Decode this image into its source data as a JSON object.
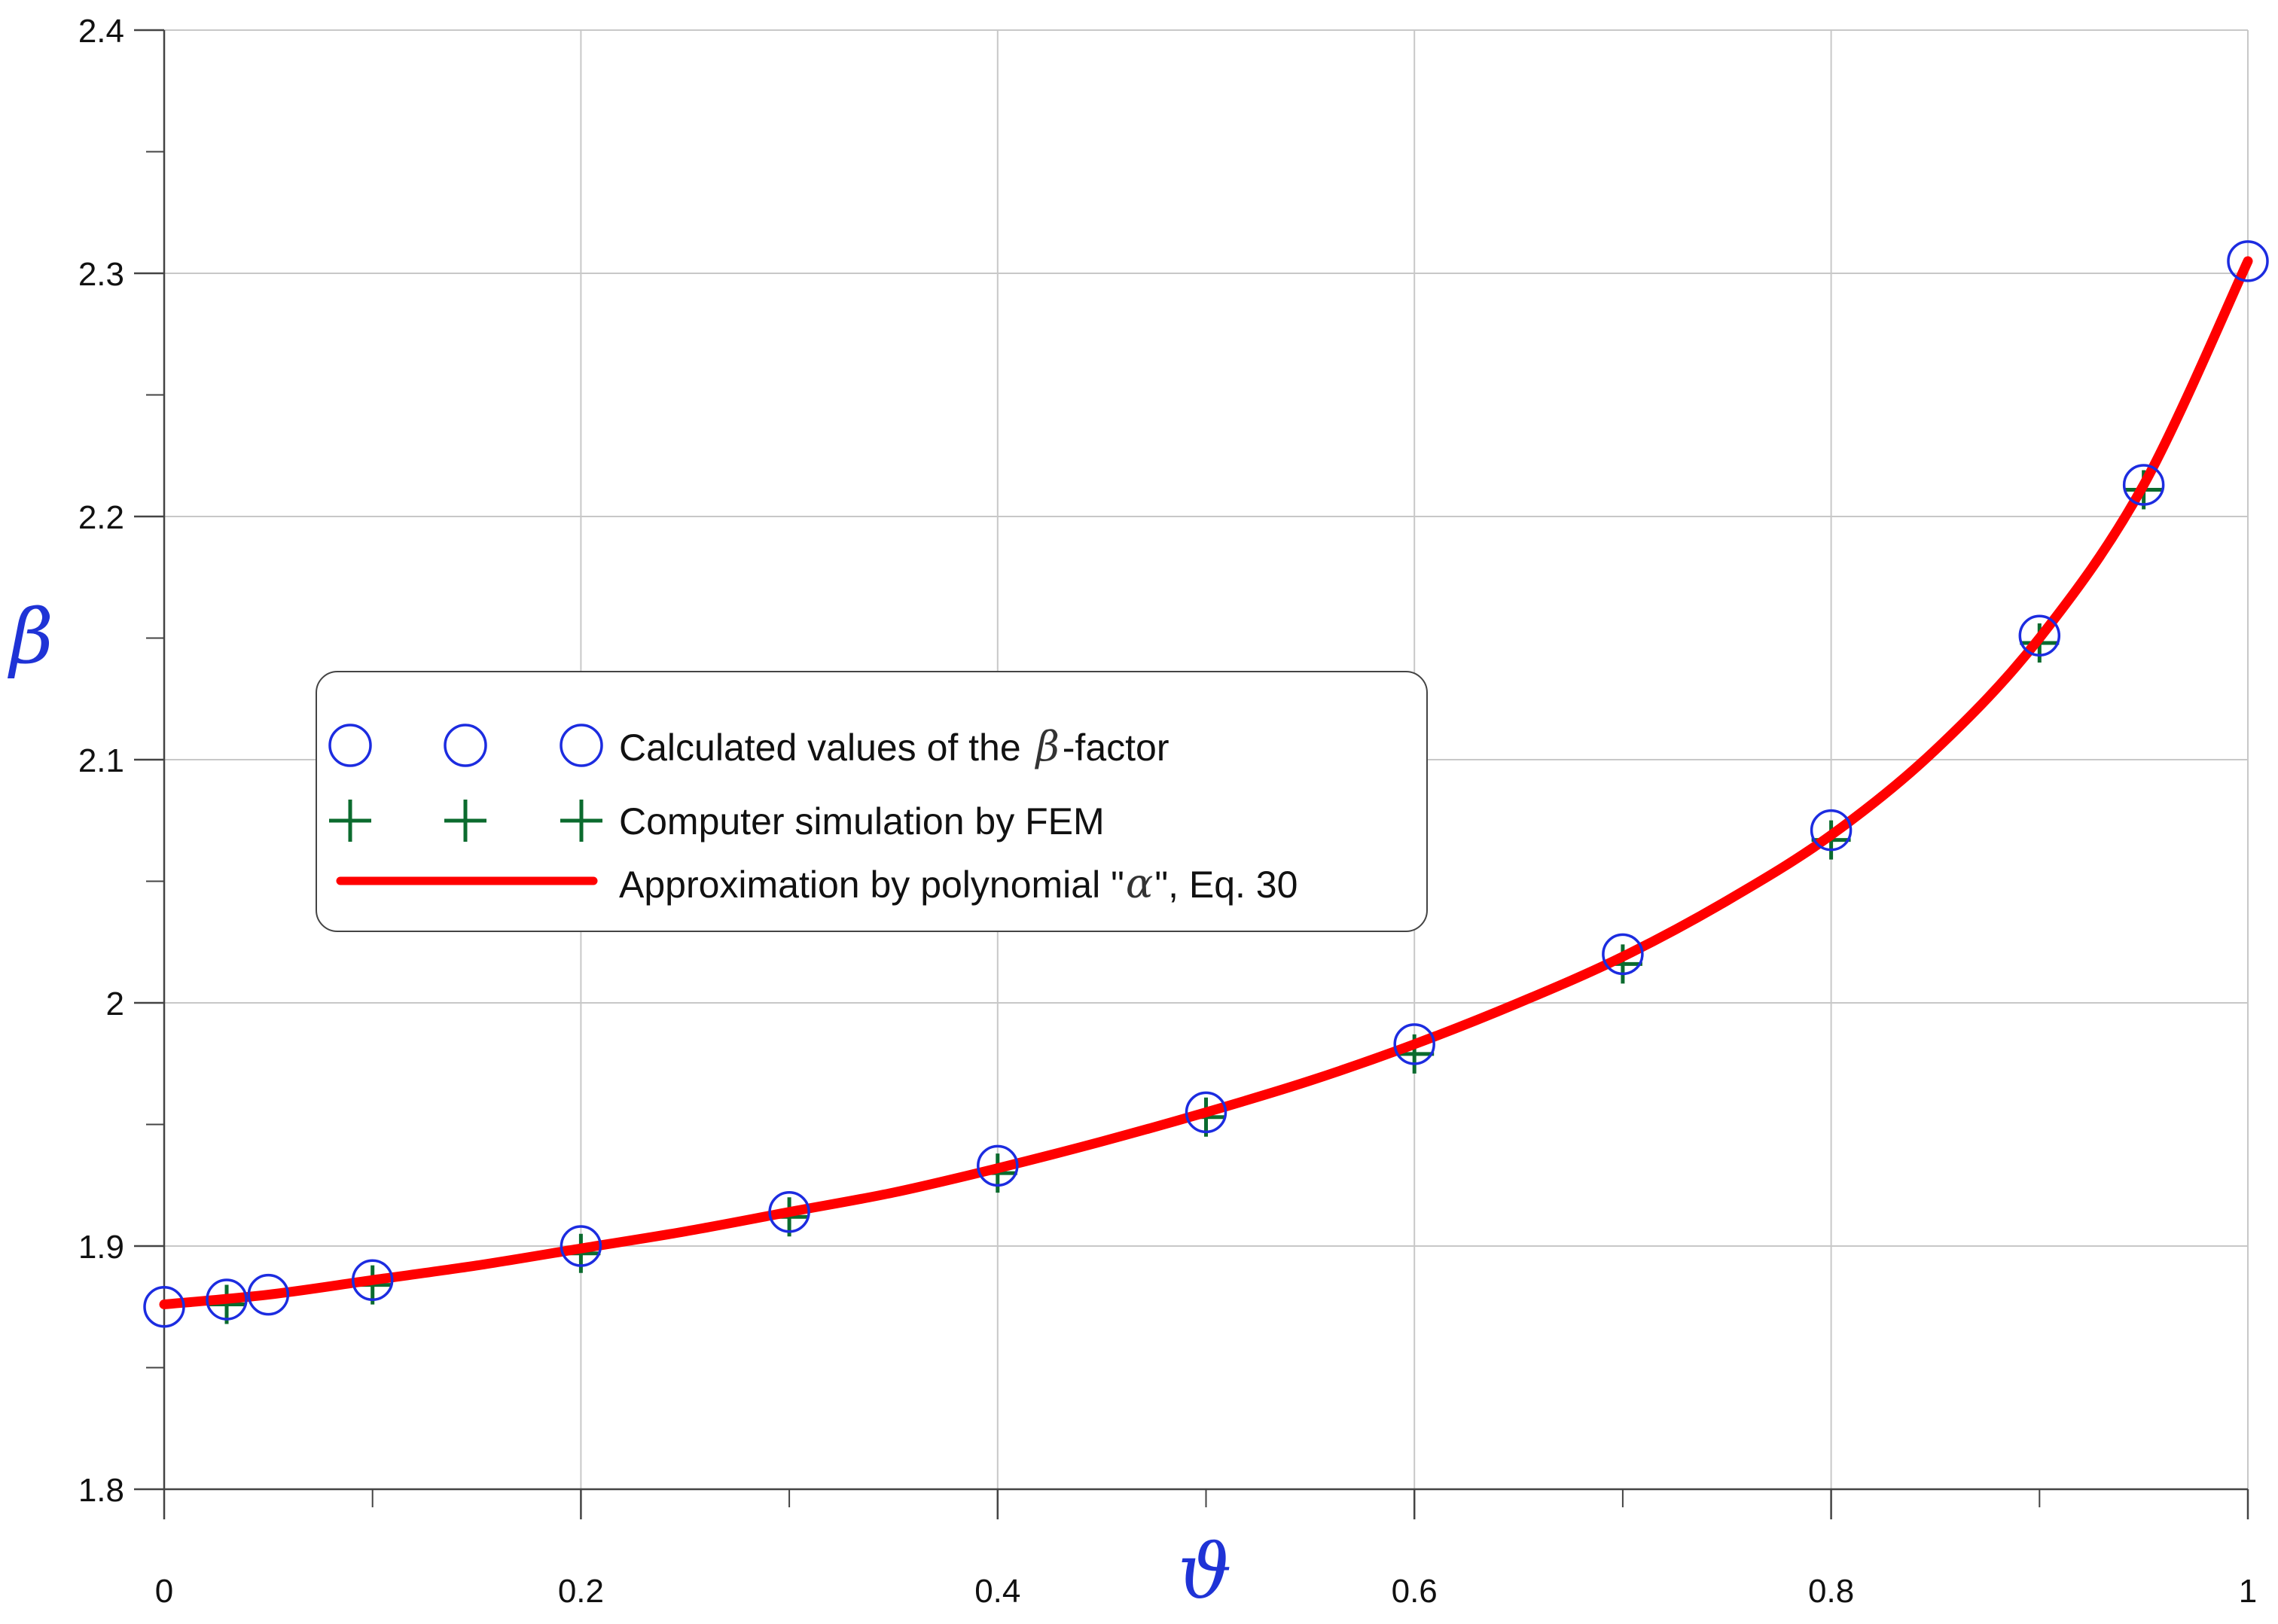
{
  "chart_data": {
    "type": "scatter",
    "xlabel": "ϑ",
    "ylabel": "β",
    "xlim": [
      0,
      1
    ],
    "ylim": [
      1.8,
      2.4
    ],
    "x_ticks": [
      0,
      0.2,
      0.4,
      0.6,
      0.8,
      1
    ],
    "x_tick_labels": [
      "0",
      "0.2",
      "0.4",
      "0.6",
      "0.8",
      "1"
    ],
    "x_minor_ticks": [
      0.1,
      0.3,
      0.5,
      0.7,
      0.9
    ],
    "y_ticks": [
      1.8,
      1.9,
      2.0,
      2.1,
      2.2,
      2.3,
      2.4
    ],
    "y_tick_labels": [
      "1.8",
      "1.9",
      "2",
      "2.1",
      "2.2",
      "2.3",
      "2.4"
    ],
    "y_minor_ticks": [
      1.85,
      1.95,
      2.05,
      2.15,
      2.25,
      2.35
    ],
    "grid": true,
    "legend_position": "center-left",
    "series": [
      {
        "name": "Calculated values of the β-factor",
        "legend_prefix": "Calculated values of the ",
        "legend_symbol": "β",
        "legend_suffix": "-factor",
        "marker": "circle",
        "color": "#1c2ce0",
        "x": [
          0,
          0.03,
          0.05,
          0.1,
          0.2,
          0.3,
          0.4,
          0.5,
          0.6,
          0.7,
          0.8,
          0.9,
          0.95,
          1.0
        ],
        "y": [
          1.875,
          1.878,
          1.88,
          1.886,
          1.9,
          1.914,
          1.933,
          1.955,
          1.983,
          2.02,
          2.071,
          2.151,
          2.213,
          2.305
        ]
      },
      {
        "name": "Computer simulation by FEM",
        "marker": "plus",
        "color": "#0b6b2e",
        "x": [
          0.03,
          0.1,
          0.2,
          0.3,
          0.4,
          0.5,
          0.6,
          0.7,
          0.8,
          0.9,
          0.95
        ],
        "y": [
          1.876,
          1.884,
          1.897,
          1.912,
          1.93,
          1.953,
          1.979,
          2.016,
          2.067,
          2.148,
          2.211
        ]
      },
      {
        "name": "Approximation by polynomial \"α\", Eq. 30",
        "legend_prefix": "Approximation by polynomial \"",
        "legend_symbol": "α",
        "legend_suffix": "\", Eq. 30",
        "marker": "line",
        "color": "#ff0000",
        "x": [
          0,
          0.05,
          0.1,
          0.15,
          0.2,
          0.25,
          0.3,
          0.35,
          0.4,
          0.45,
          0.5,
          0.55,
          0.6,
          0.65,
          0.7,
          0.75,
          0.8,
          0.85,
          0.9,
          0.95,
          1.0
        ],
        "y": [
          1.876,
          1.88,
          1.886,
          1.892,
          1.899,
          1.906,
          1.914,
          1.922,
          1.932,
          1.943,
          1.955,
          1.968,
          1.983,
          2.0,
          2.019,
          2.042,
          2.069,
          2.104,
          2.15,
          2.213,
          2.305
        ]
      }
    ]
  }
}
